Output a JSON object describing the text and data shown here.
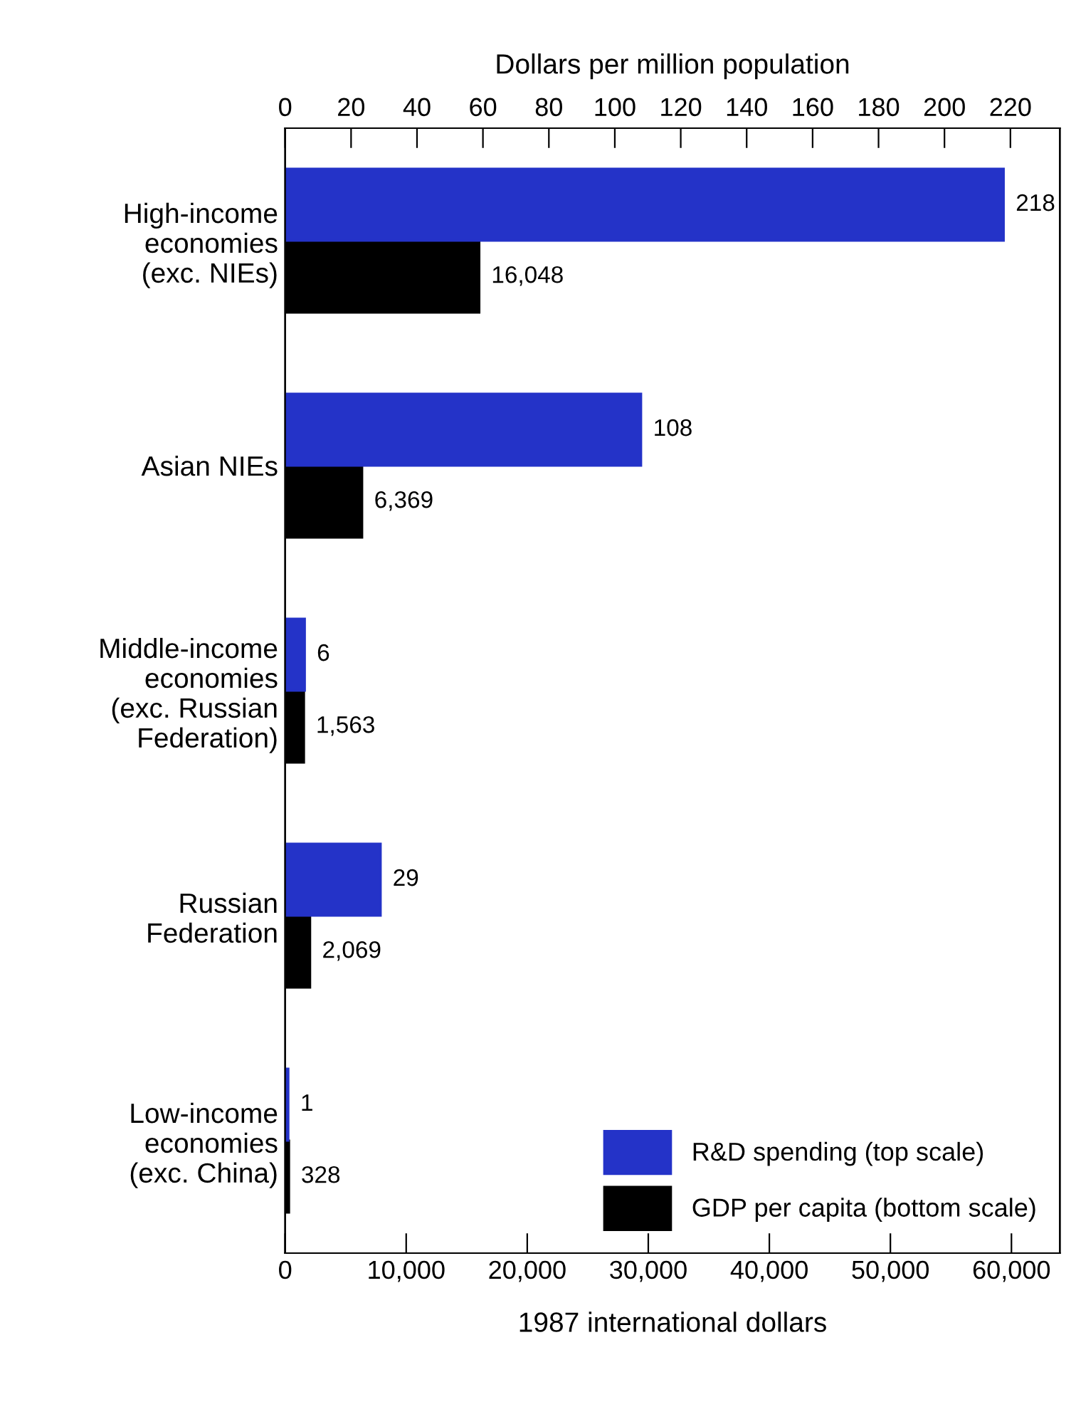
{
  "chart_data": {
    "type": "bar",
    "orientation": "horizontal",
    "x2label": "Dollars per million population",
    "xlabel": "1987 international dollars",
    "categories": [
      "High-income\neconomies\n(exc. NIEs)",
      "Asian NIEs",
      "Middle-income\neconomies\n(exc. Russian\nFederation)",
      "Russian\nFederation",
      "Low-income\neconomies\n(exc. China)"
    ],
    "series": [
      {
        "name": "R&D spending (top scale)",
        "color": "#2433c8",
        "axis": "x2",
        "values": [
          218,
          108,
          6,
          29,
          1
        ],
        "value_labels": [
          "218",
          "108",
          "6",
          "29",
          "1"
        ]
      },
      {
        "name": "GDP per capita (bottom scale)",
        "color": "#000000",
        "values": [
          16048,
          6369,
          1563,
          2069,
          328
        ],
        "value_labels": [
          "16,048",
          "6,369",
          "1,563",
          "2,069",
          "328"
        ]
      }
    ],
    "x2lim": [
      0,
      235
    ],
    "x2ticks": [
      0,
      20,
      40,
      60,
      80,
      100,
      120,
      140,
      160,
      180,
      200,
      220
    ],
    "xlim": [
      0,
      64000
    ],
    "xticks": [
      0,
      {
        "value": 10000,
        "label": "10,000"
      },
      {
        "value": 20000,
        "label": "20,000"
      },
      {
        "value": 30000,
        "label": "30,000"
      },
      {
        "value": 40000,
        "label": "40,000"
      },
      {
        "value": 50000,
        "label": "50,000"
      },
      {
        "value": 60000,
        "label": "60,000"
      }
    ],
    "legend": "bottom right",
    "grid": false
  }
}
